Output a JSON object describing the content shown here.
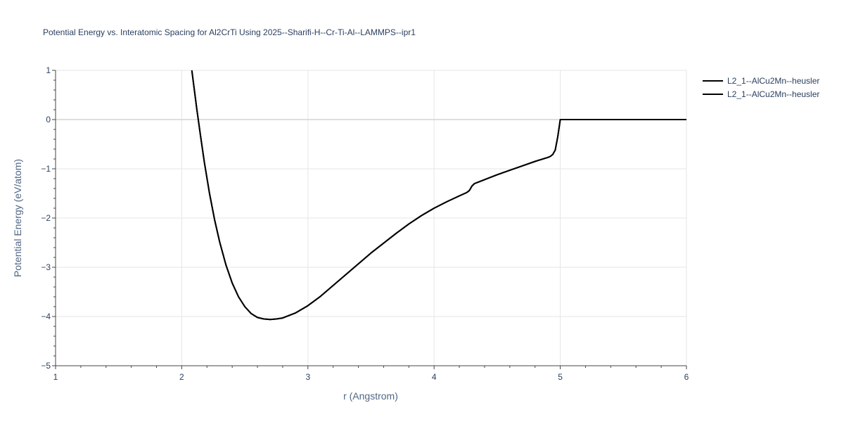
{
  "chart_data": {
    "type": "line",
    "title": "Potential Energy vs. Interatomic Spacing for Al2CrTi Using 2025--Sharifi-H--Cr-Ti-Al--LAMMPS--ipr1",
    "xlabel": "r (Angstrom)",
    "ylabel": "Potential Energy (eV/atom)",
    "xlim": [
      1,
      6
    ],
    "ylim": [
      -5,
      1
    ],
    "xticks": [
      1,
      2,
      3,
      4,
      5,
      6
    ],
    "xtick_labels": [
      "1",
      "2",
      "3",
      "4",
      "5",
      "6"
    ],
    "yticks": [
      1,
      0,
      -1,
      -2,
      -3,
      -4,
      -5
    ],
    "ytick_labels": [
      "1",
      "0",
      "−1",
      "−2",
      "−3",
      "−4",
      "−5"
    ],
    "grid": true,
    "legend_position": "top-right",
    "series": [
      {
        "name": "L2_1--AlCu2Mn--heusler",
        "color": "#000000",
        "x": [
          2.08,
          2.1,
          2.12,
          2.15,
          2.18,
          2.22,
          2.26,
          2.3,
          2.35,
          2.4,
          2.45,
          2.5,
          2.55,
          2.6,
          2.65,
          2.7,
          2.75,
          2.8,
          2.9,
          3.0,
          3.1,
          3.2,
          3.3,
          3.4,
          3.5,
          3.6,
          3.7,
          3.8,
          3.9,
          4.0,
          4.1,
          4.2,
          4.26,
          4.28,
          4.3,
          4.32,
          4.35,
          4.4,
          4.5,
          4.6,
          4.7,
          4.8,
          4.9,
          4.92,
          4.94,
          4.96,
          4.98,
          5.0,
          5.1,
          5.5,
          6.0
        ],
        "y": [
          1.0,
          0.6,
          0.2,
          -0.35,
          -0.88,
          -1.5,
          -2.03,
          -2.48,
          -2.95,
          -3.32,
          -3.6,
          -3.8,
          -3.94,
          -4.02,
          -4.05,
          -4.06,
          -4.05,
          -4.03,
          -3.93,
          -3.78,
          -3.59,
          -3.37,
          -3.15,
          -2.93,
          -2.71,
          -2.51,
          -2.31,
          -2.12,
          -1.95,
          -1.8,
          -1.67,
          -1.55,
          -1.48,
          -1.44,
          -1.35,
          -1.3,
          -1.27,
          -1.22,
          -1.12,
          -1.03,
          -0.94,
          -0.85,
          -0.77,
          -0.75,
          -0.71,
          -0.62,
          -0.35,
          0.0,
          0.0,
          0.0,
          0.0
        ]
      },
      {
        "name": "L2_1--AlCu2Mn--heusler",
        "color": "#000000",
        "x": [
          2.08,
          2.1,
          2.12,
          2.15,
          2.18,
          2.22,
          2.26,
          2.3,
          2.35,
          2.4,
          2.45,
          2.5,
          2.55,
          2.6,
          2.65,
          2.7,
          2.75,
          2.8,
          2.9,
          3.0,
          3.1,
          3.2,
          3.3,
          3.4,
          3.5,
          3.6,
          3.7,
          3.8,
          3.9,
          4.0,
          4.1,
          4.2,
          4.26,
          4.28,
          4.3,
          4.32,
          4.35,
          4.4,
          4.5,
          4.6,
          4.7,
          4.8,
          4.9,
          4.92,
          4.94,
          4.96,
          4.98,
          5.0,
          5.1,
          5.5,
          6.0
        ],
        "y": [
          1.0,
          0.6,
          0.2,
          -0.35,
          -0.88,
          -1.5,
          -2.03,
          -2.48,
          -2.95,
          -3.32,
          -3.6,
          -3.8,
          -3.94,
          -4.02,
          -4.05,
          -4.06,
          -4.05,
          -4.03,
          -3.93,
          -3.78,
          -3.59,
          -3.37,
          -3.15,
          -2.93,
          -2.71,
          -2.51,
          -2.31,
          -2.12,
          -1.95,
          -1.8,
          -1.67,
          -1.55,
          -1.48,
          -1.44,
          -1.35,
          -1.3,
          -1.27,
          -1.22,
          -1.12,
          -1.03,
          -0.94,
          -0.85,
          -0.77,
          -0.75,
          -0.71,
          -0.62,
          -0.35,
          0.0,
          0.0,
          0.0,
          0.0
        ]
      }
    ]
  }
}
